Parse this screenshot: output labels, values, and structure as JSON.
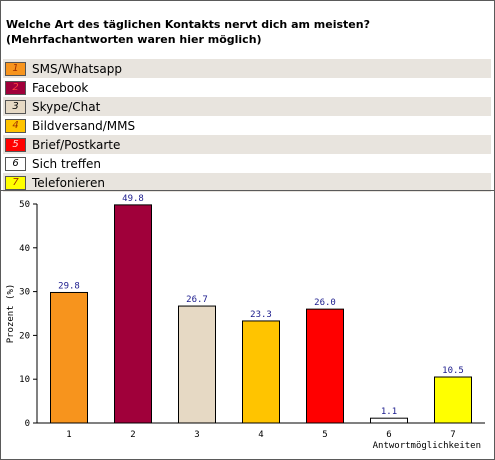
{
  "question": "Welche Art des täglichen Kontakts nervt dich am meisten? (Mehrfachantworten waren hier möglich)",
  "legend": [
    {
      "number": "1",
      "label": "SMS/Whatsapp",
      "color": "#f7941d",
      "number_color": "#a03000"
    },
    {
      "number": "2",
      "label": "Facebook",
      "color": "#a0003a",
      "number_color": "#ff4040"
    },
    {
      "number": "3",
      "label": "Skype/Chat",
      "color": "#e6d9c4",
      "number_color": "#000000"
    },
    {
      "number": "4",
      "label": "Bildversand/MMS",
      "color": "#ffc400",
      "number_color": "#a03000"
    },
    {
      "number": "5",
      "label": "Brief/Postkarte",
      "color": "#ff0000",
      "number_color": "#ffd0d0"
    },
    {
      "number": "6",
      "label": "Sich treffen",
      "color": "#ffffff",
      "number_color": "#000000"
    },
    {
      "number": "7",
      "label": "Telefonieren",
      "color": "#ffff00",
      "number_color": "#a03000"
    }
  ],
  "chart_data": {
    "type": "bar",
    "categories": [
      "1",
      "2",
      "3",
      "4",
      "5",
      "6",
      "7"
    ],
    "values": [
      29.8,
      49.8,
      26.7,
      23.3,
      26.0,
      1.1,
      10.5
    ],
    "value_labels": [
      "29.8",
      "49.8",
      "26.7",
      "23.3",
      "26.0",
      "1.1",
      "10.5"
    ],
    "colors": [
      "#f7941d",
      "#a0003a",
      "#e6d9c4",
      "#ffc400",
      "#ff0000",
      "#ffffff",
      "#ffff00"
    ],
    "xlabel": "Antwortmöglichkeiten",
    "ylabel": "Prozent (%)",
    "ylim": [
      0,
      50
    ],
    "yticks": [
      "0",
      "10",
      "20",
      "30",
      "40",
      "50"
    ],
    "grid": false
  }
}
